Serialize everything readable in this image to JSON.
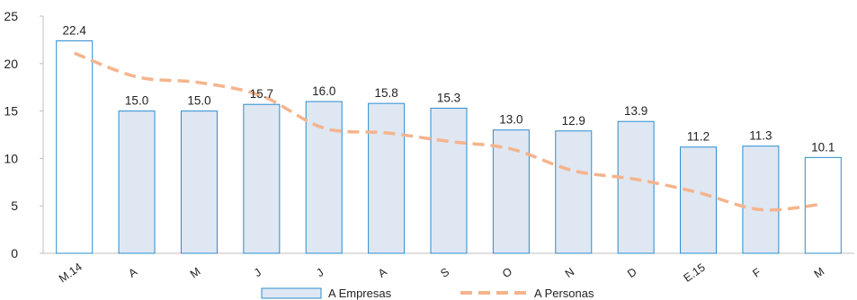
{
  "chart_data": {
    "type": "bar",
    "categories": [
      "M.14",
      "A",
      "M",
      "J",
      "J",
      "A",
      "S",
      "O",
      "N",
      "D",
      "E.15",
      "F",
      "M"
    ],
    "series": [
      {
        "name": "A Empresas",
        "type": "bar",
        "values": [
          22.4,
          15.0,
          15.0,
          15.7,
          16.0,
          15.8,
          15.3,
          13.0,
          12.9,
          13.9,
          11.2,
          11.3,
          10.1
        ],
        "labels": [
          "22.4",
          "15.0",
          "15.0",
          "15.7",
          "16.0",
          "15.8",
          "15.3",
          "13.0",
          "12.9",
          "13.9",
          "11.2",
          "11.3",
          "10.1"
        ],
        "fill": "#dfe7f3",
        "stroke": "#2b8ccf",
        "highlighted_fill": "#ffffff",
        "highlighted_indices": [
          0,
          12
        ]
      },
      {
        "name": "A Personas",
        "type": "line",
        "style": "dashed",
        "color": "#f5b48c",
        "values": [
          21.1,
          18.6,
          18.0,
          16.6,
          13.2,
          12.7,
          11.8,
          11.0,
          8.7,
          7.8,
          6.4,
          4.6,
          5.2
        ]
      }
    ],
    "ylim": [
      0,
      25
    ],
    "yticks": [
      "0",
      "5",
      "10",
      "15",
      "20",
      "25"
    ],
    "grid": false,
    "legend": "bottom"
  }
}
